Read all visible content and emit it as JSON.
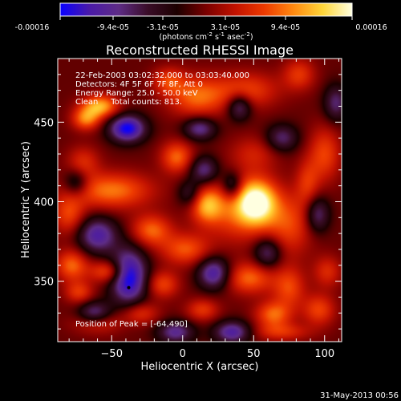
{
  "colors": {
    "background": "#000000",
    "foreground": "#ffffff",
    "colormap": [
      "#0a00ff",
      "#4a1aa8",
      "#5e2c86",
      "#3a0d28",
      "#1c0000",
      "#7a0000",
      "#c21200",
      "#ee3a00",
      "#ff8a10",
      "#ffd63a",
      "#ffffe0"
    ]
  },
  "colorbar": {
    "tick_labels": [
      "-0.00016",
      "-9.4e-05",
      "-3.1e-05",
      "3.1e-05",
      "9.4e-05",
      "0.00016"
    ],
    "units_prefix": "(photons cm",
    "units_sup1": "-2",
    "units_mid": " s",
    "units_sup2": "-1",
    "units_asec": " asec",
    "units_sup3": "-2",
    "units_suffix": ")"
  },
  "overlay": {
    "line1": "22-Feb-2003 03:02:32.000 to 03:03:40.000",
    "line2": "Detectors: 4F 5F 6F 7F 8F, Att 0",
    "line3": "Energy Range: 25.0 - 50.0 keV",
    "line4": "Clean     Total counts: 813.",
    "peak": "Position of Peak = [-64,490]"
  },
  "footer": {
    "date": "31-May-2013 00:56"
  },
  "chart_data": {
    "type": "heatmap",
    "title": "Reconstructed RHESSI Image",
    "xlabel": "Heliocentric X (arcsec)",
    "ylabel": "Heliocentric Y (arcsec)",
    "xlim": [
      -88,
      112
    ],
    "ylim": [
      312,
      490
    ],
    "x_ticks": [
      -50,
      0,
      50,
      100
    ],
    "x_tick_labels": [
      "−50",
      "0",
      "50",
      "100"
    ],
    "y_ticks": [
      350,
      400,
      450
    ],
    "y_tick_labels": [
      "350",
      "400",
      "450"
    ],
    "value_range": [
      -0.00016,
      0.00016
    ],
    "peak_position": [
      -64,
      490
    ],
    "grid": false,
    "blobs": [
      {
        "x": 52,
        "y": 400,
        "sx": 10,
        "sy": 10,
        "a": 1.0
      },
      {
        "x": 38,
        "y": 393,
        "sx": 16,
        "sy": 13,
        "a": 0.45
      },
      {
        "x": 75,
        "y": 386,
        "sx": 12,
        "sy": 14,
        "a": 0.45
      },
      {
        "x": -58,
        "y": 460,
        "sx": 9,
        "sy": 5,
        "a": 0.75
      },
      {
        "x": -68,
        "y": 452,
        "sx": 7,
        "sy": 5,
        "a": 0.6
      },
      {
        "x": 10,
        "y": 466,
        "sx": 14,
        "sy": 9,
        "a": 0.55
      },
      {
        "x": 45,
        "y": 470,
        "sx": 16,
        "sy": 8,
        "a": 0.45
      },
      {
        "x": 82,
        "y": 480,
        "sx": 8,
        "sy": 7,
        "a": 0.4
      },
      {
        "x": -4,
        "y": 428,
        "sx": 8,
        "sy": 7,
        "a": 0.55
      },
      {
        "x": 100,
        "y": 430,
        "sx": 8,
        "sy": 12,
        "a": 0.45
      },
      {
        "x": -50,
        "y": 407,
        "sx": 20,
        "sy": 8,
        "a": 0.6
      },
      {
        "x": -80,
        "y": 392,
        "sx": 8,
        "sy": 9,
        "a": 0.45
      },
      {
        "x": 17,
        "y": 398,
        "sx": 8,
        "sy": 8,
        "a": 0.65
      },
      {
        "x": -22,
        "y": 382,
        "sx": 10,
        "sy": 7,
        "a": 0.55
      },
      {
        "x": 2,
        "y": 370,
        "sx": 12,
        "sy": 7,
        "a": 0.5
      },
      {
        "x": -78,
        "y": 360,
        "sx": 8,
        "sy": 7,
        "a": 0.55
      },
      {
        "x": -52,
        "y": 356,
        "sx": 9,
        "sy": 5,
        "a": 0.55
      },
      {
        "x": -73,
        "y": 343,
        "sx": 7,
        "sy": 5,
        "a": 0.4
      },
      {
        "x": -14,
        "y": 348,
        "sx": 8,
        "sy": 6,
        "a": 0.45
      },
      {
        "x": 47,
        "y": 352,
        "sx": 12,
        "sy": 7,
        "a": 0.55
      },
      {
        "x": 75,
        "y": 346,
        "sx": 8,
        "sy": 9,
        "a": 0.45
      },
      {
        "x": 102,
        "y": 356,
        "sx": 7,
        "sy": 7,
        "a": 0.35
      },
      {
        "x": 64,
        "y": 329,
        "sx": 9,
        "sy": 6,
        "a": 0.55
      },
      {
        "x": 96,
        "y": 332,
        "sx": 8,
        "sy": 7,
        "a": 0.45
      },
      {
        "x": 14,
        "y": 332,
        "sx": 8,
        "sy": 5,
        "a": 0.4
      },
      {
        "x": -30,
        "y": 330,
        "sx": 9,
        "sy": 5,
        "a": 0.4
      },
      {
        "x": -60,
        "y": 324,
        "sx": 12,
        "sy": 5,
        "a": 0.35
      },
      {
        "x": 70,
        "y": 318,
        "sx": 14,
        "sy": 4,
        "a": 0.35
      },
      {
        "x": 88,
        "y": 412,
        "sx": 6,
        "sy": 10,
        "a": 0.35
      },
      {
        "x": 50,
        "y": 430,
        "sx": 12,
        "sy": 8,
        "a": 0.3
      },
      {
        "x": -70,
        "y": 425,
        "sx": 8,
        "sy": 7,
        "a": 0.35
      },
      {
        "x": -10,
        "y": 476,
        "sx": 8,
        "sy": 6,
        "a": 0.4
      },
      {
        "x": -39,
        "y": 446,
        "sx": 9,
        "sy": 6,
        "a": -0.95
      },
      {
        "x": -60,
        "y": 379,
        "sx": 10,
        "sy": 8,
        "a": -0.7
      },
      {
        "x": -38,
        "y": 353,
        "sx": 9,
        "sy": 12,
        "a": -1.0
      },
      {
        "x": -62,
        "y": 330,
        "sx": 8,
        "sy": 5,
        "a": -0.6
      },
      {
        "x": 12,
        "y": 446,
        "sx": 8,
        "sy": 5,
        "a": -0.6
      },
      {
        "x": 40,
        "y": 460,
        "sx": 6,
        "sy": 6,
        "a": -0.6
      },
      {
        "x": 15,
        "y": 420,
        "sx": 7,
        "sy": 6,
        "a": -0.55
      },
      {
        "x": 35,
        "y": 410,
        "sx": 5,
        "sy": 6,
        "a": -0.5
      },
      {
        "x": 22,
        "y": 355,
        "sx": 8,
        "sy": 7,
        "a": -0.75
      },
      {
        "x": 95,
        "y": 392,
        "sx": 6,
        "sy": 8,
        "a": -0.55
      },
      {
        "x": 70,
        "y": 440,
        "sx": 8,
        "sy": 6,
        "a": -0.5
      },
      {
        "x": -5,
        "y": 318,
        "sx": 9,
        "sy": 5,
        "a": -0.6
      },
      {
        "x": 35,
        "y": 318,
        "sx": 9,
        "sy": 5,
        "a": -0.7
      },
      {
        "x": -75,
        "y": 412,
        "sx": 6,
        "sy": 6,
        "a": -0.45
      },
      {
        "x": 5,
        "y": 405,
        "sx": 6,
        "sy": 6,
        "a": -0.4
      },
      {
        "x": 60,
        "y": 368,
        "sx": 7,
        "sy": 7,
        "a": -0.55
      },
      {
        "x": 108,
        "y": 462,
        "sx": 6,
        "sy": 8,
        "a": -0.5
      }
    ]
  }
}
